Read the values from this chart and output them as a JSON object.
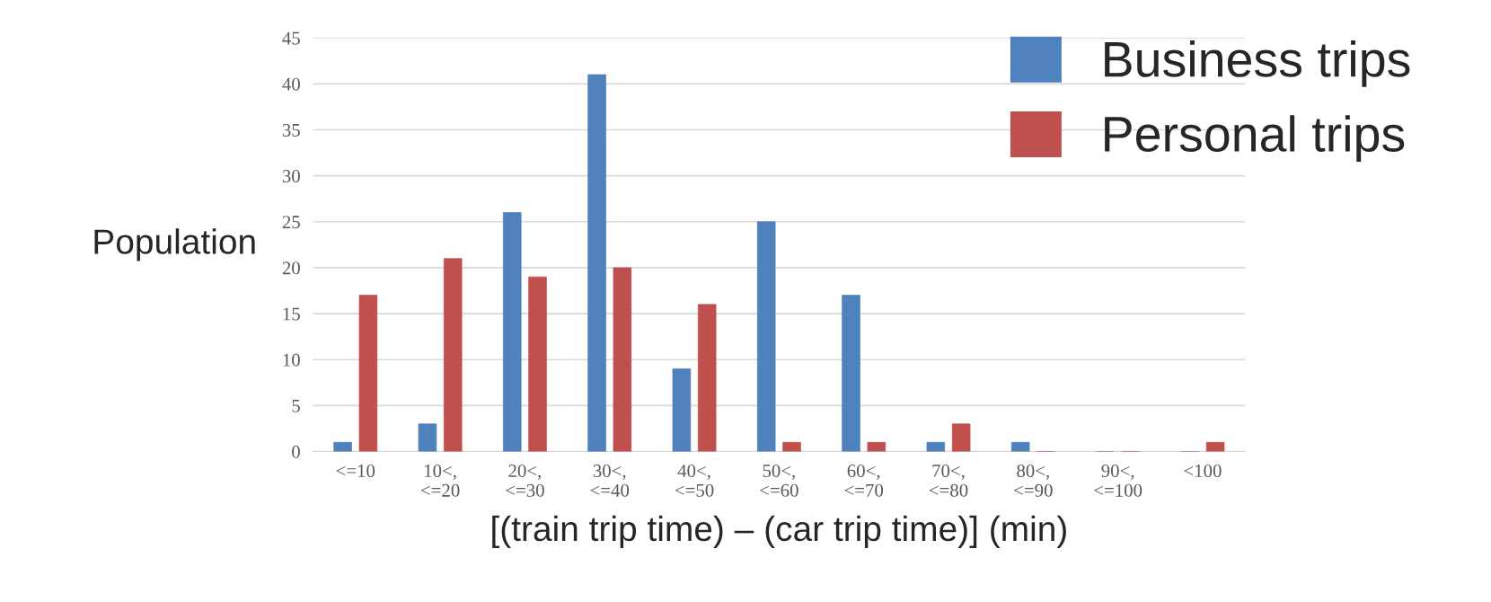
{
  "chart_data": {
    "type": "bar",
    "categories": [
      "<=10",
      "10<,\n<=20",
      "20<,\n<=30",
      "30<,\n<=40",
      "40<,\n<=50",
      "50<,\n<=60",
      "60<,\n<=70",
      "70<,\n<=80",
      "80<,\n<=90",
      "90<,\n<=100",
      "<100"
    ],
    "series": [
      {
        "name": "Business trips",
        "color": "#4f81bd",
        "values": [
          1,
          3,
          26,
          41,
          9,
          25,
          17,
          1,
          1,
          0,
          0
        ]
      },
      {
        "name": "Personal trips",
        "color": "#c0504d",
        "values": [
          17,
          21,
          19,
          20,
          16,
          1,
          1,
          3,
          0,
          0,
          1
        ]
      }
    ],
    "xlabel": "[(train trip time) – (car trip time)] (min)",
    "ylabel": "Population",
    "ylim": [
      0,
      45
    ],
    "yticks": [
      0,
      5,
      10,
      15,
      20,
      25,
      30,
      35,
      40,
      45
    ],
    "grid": "y",
    "legend": "top right"
  }
}
